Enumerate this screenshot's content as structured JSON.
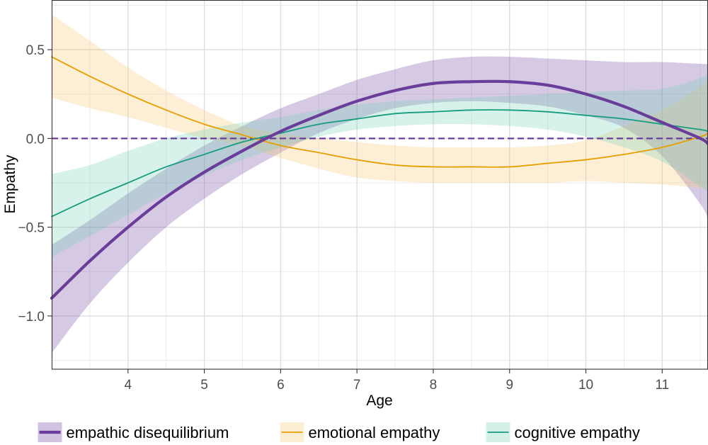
{
  "chart_data": {
    "type": "line",
    "title": "",
    "xlabel": "Age",
    "ylabel": "Empathy",
    "xlim": [
      3.0,
      11.6
    ],
    "ylim": [
      -1.3,
      0.78
    ],
    "x_ticks": [
      4,
      5,
      6,
      7,
      8,
      9,
      10,
      11
    ],
    "x_tick_labels": [
      "4",
      "5",
      "6",
      "7",
      "8",
      "9",
      "10",
      "11"
    ],
    "y_ticks": [
      0.5,
      0.0,
      -0.5,
      -1.0
    ],
    "y_tick_labels": [
      "0.5",
      "0.0",
      "−0.5",
      "−1.0"
    ],
    "x_minor_ticks": [
      3.5,
      4.5,
      5.5,
      6.5,
      7.5,
      8.5,
      9.5,
      10.5,
      11.5
    ],
    "y_minor_ticks": [
      0.75,
      0.25,
      -0.25,
      -0.75,
      -1.25
    ],
    "grid": true,
    "reference_line": {
      "y": 0,
      "style": "dashed",
      "color": "#6a3d9a"
    },
    "legend_position": "bottom",
    "series": [
      {
        "name": "empathic disequilibrium",
        "color": "#6a3d9a",
        "fill": "#6a3d9a",
        "line_width": "thick",
        "x": [
          3.0,
          3.5,
          4.0,
          4.5,
          5.0,
          5.5,
          6.0,
          6.5,
          7.0,
          7.5,
          8.0,
          8.5,
          9.0,
          9.5,
          10.0,
          10.5,
          11.0,
          11.5,
          11.6
        ],
        "y": [
          -0.9,
          -0.69,
          -0.5,
          -0.33,
          -0.19,
          -0.07,
          0.04,
          0.13,
          0.21,
          0.27,
          0.31,
          0.32,
          0.32,
          0.3,
          0.25,
          0.18,
          0.09,
          0.0,
          -0.03
        ],
        "lower": [
          -1.21,
          -0.93,
          -0.7,
          -0.5,
          -0.34,
          -0.2,
          -0.08,
          0.03,
          0.11,
          0.17,
          0.2,
          0.21,
          0.2,
          0.18,
          0.13,
          0.06,
          -0.1,
          -0.37,
          -0.46
        ],
        "upper": [
          -0.6,
          -0.46,
          -0.31,
          -0.17,
          -0.04,
          0.07,
          0.17,
          0.25,
          0.33,
          0.39,
          0.44,
          0.46,
          0.46,
          0.45,
          0.44,
          0.43,
          0.43,
          0.42,
          0.42
        ]
      },
      {
        "name": "emotional empathy",
        "color": "#e69f00",
        "fill": "#f4c76a",
        "line_width": "thin",
        "x": [
          3.0,
          3.5,
          4.0,
          4.5,
          5.0,
          5.5,
          6.0,
          6.5,
          7.0,
          7.5,
          8.0,
          8.5,
          9.0,
          9.5,
          10.0,
          10.5,
          11.0,
          11.5,
          11.6
        ],
        "y": [
          0.46,
          0.35,
          0.25,
          0.16,
          0.08,
          0.02,
          -0.04,
          -0.08,
          -0.12,
          -0.15,
          -0.16,
          -0.16,
          -0.16,
          -0.14,
          -0.12,
          -0.09,
          -0.05,
          0.01,
          0.03
        ],
        "lower": [
          0.23,
          0.17,
          0.12,
          0.06,
          0.0,
          -0.04,
          -0.11,
          -0.17,
          -0.22,
          -0.24,
          -0.25,
          -0.25,
          -0.25,
          -0.25,
          -0.24,
          -0.25,
          -0.26,
          -0.28,
          -0.29
        ],
        "upper": [
          0.7,
          0.55,
          0.4,
          0.27,
          0.16,
          0.07,
          0.03,
          0.0,
          -0.02,
          -0.04,
          -0.05,
          -0.05,
          -0.05,
          -0.04,
          -0.01,
          0.07,
          0.16,
          0.29,
          0.33
        ]
      },
      {
        "name": "cognitive empathy",
        "color": "#169c7e",
        "fill": "#6fcfb4",
        "line_width": "thin",
        "x": [
          3.0,
          3.5,
          4.0,
          4.5,
          5.0,
          5.5,
          6.0,
          6.5,
          7.0,
          7.5,
          8.0,
          8.5,
          9.0,
          9.5,
          10.0,
          10.5,
          11.0,
          11.5,
          11.6
        ],
        "y": [
          -0.44,
          -0.34,
          -0.25,
          -0.16,
          -0.09,
          -0.02,
          0.03,
          0.08,
          0.11,
          0.14,
          0.15,
          0.16,
          0.16,
          0.15,
          0.13,
          0.11,
          0.08,
          0.05,
          0.04
        ],
        "lower": [
          -0.67,
          -0.55,
          -0.43,
          -0.31,
          -0.21,
          -0.12,
          -0.05,
          0.01,
          0.05,
          0.07,
          0.08,
          0.08,
          0.07,
          0.05,
          0.01,
          -0.05,
          -0.13,
          -0.27,
          -0.3
        ],
        "upper": [
          -0.2,
          -0.15,
          -0.07,
          0.0,
          0.05,
          0.09,
          0.12,
          0.16,
          0.19,
          0.21,
          0.22,
          0.23,
          0.24,
          0.25,
          0.26,
          0.27,
          0.28,
          0.34,
          0.37
        ]
      }
    ]
  }
}
